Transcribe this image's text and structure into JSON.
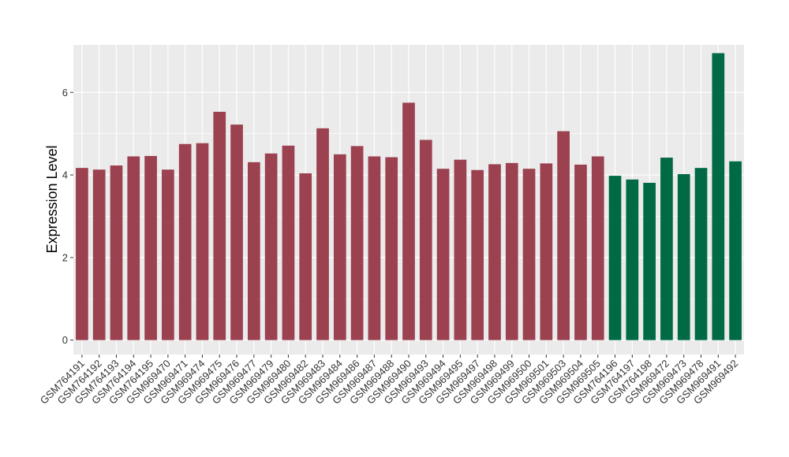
{
  "chart_data": {
    "type": "bar",
    "title": "",
    "xlabel": "",
    "ylabel": "Expression Level",
    "ylim": [
      -0.35,
      7.15
    ],
    "yticks": [
      0,
      2,
      4,
      6
    ],
    "grid": true,
    "legend": "none",
    "colors": {
      "group1": "#9b4150",
      "group2": "#006a44",
      "panel": "#ebebeb",
      "grid": "#ffffff"
    },
    "categories": [
      "GSM764191",
      "GSM764192",
      "GSM764193",
      "GSM764194",
      "GSM764195",
      "GSM969470",
      "GSM969471",
      "GSM969474",
      "GSM969475",
      "GSM969476",
      "GSM969477",
      "GSM969479",
      "GSM969480",
      "GSM969482",
      "GSM969483",
      "GSM969484",
      "GSM969486",
      "GSM969487",
      "GSM969488",
      "GSM969490",
      "GSM969493",
      "GSM969494",
      "GSM969495",
      "GSM969497",
      "GSM969498",
      "GSM969499",
      "GSM969500",
      "GSM969501",
      "GSM969503",
      "GSM969504",
      "GSM969505",
      "GSM764196",
      "GSM764197",
      "GSM764198",
      "GSM969472",
      "GSM969473",
      "GSM969478",
      "GSM969491",
      "GSM969492"
    ],
    "values": [
      4.17,
      4.13,
      4.23,
      4.45,
      4.46,
      4.13,
      4.75,
      4.77,
      5.53,
      5.22,
      4.31,
      4.52,
      4.71,
      4.04,
      5.13,
      4.5,
      4.7,
      4.45,
      4.43,
      5.75,
      4.85,
      4.15,
      4.37,
      4.12,
      4.26,
      4.29,
      4.15,
      4.28,
      5.06,
      4.25,
      4.45,
      3.98,
      3.89,
      3.81,
      4.42,
      4.02,
      4.17,
      6.95,
      4.33
    ],
    "groups": [
      1,
      1,
      1,
      1,
      1,
      1,
      1,
      1,
      1,
      1,
      1,
      1,
      1,
      1,
      1,
      1,
      1,
      1,
      1,
      1,
      1,
      1,
      1,
      1,
      1,
      1,
      1,
      1,
      1,
      1,
      1,
      2,
      2,
      2,
      2,
      2,
      2,
      2,
      2
    ]
  }
}
